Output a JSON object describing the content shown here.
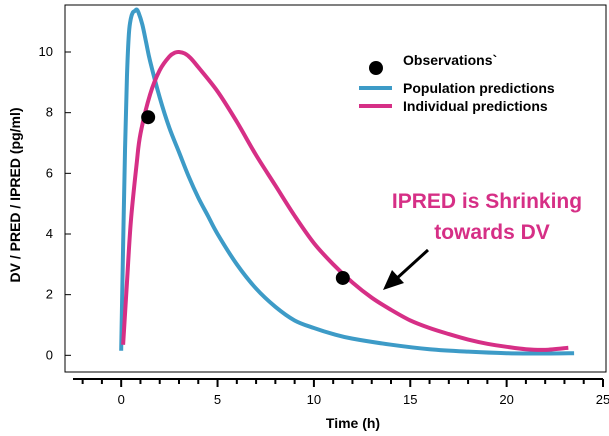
{
  "chart_data": {
    "type": "line",
    "xlabel": "Time (h)",
    "ylabel": "DV / PRED / IPRED (pg/ml)",
    "xlim": [
      -2.5,
      25
    ],
    "ylim": [
      -0.55,
      11.55
    ],
    "xticks": [
      0,
      5,
      10,
      15,
      20,
      25
    ],
    "yticks": [
      0,
      2,
      4,
      6,
      8,
      10
    ],
    "grid": false,
    "legend_position": "top-right",
    "series": [
      {
        "name": "Population predictions",
        "color": "#3d9bc7",
        "x": [
          0.0,
          0.1,
          0.2,
          0.3,
          0.4,
          0.5,
          0.6,
          0.7,
          0.8,
          0.9,
          1.1,
          1.3,
          1.5,
          2,
          2.5,
          3,
          3.5,
          4,
          4.5,
          5,
          6,
          7,
          8,
          9,
          10,
          11,
          12,
          14,
          16,
          18,
          20,
          22,
          23.5
        ],
        "y": [
          0.15,
          3.6,
          6.8,
          9.2,
          10.6,
          11.1,
          11.3,
          11.35,
          11.4,
          11.3,
          10.9,
          10.3,
          9.7,
          8.5,
          7.5,
          6.7,
          5.9,
          5.2,
          4.6,
          4.0,
          3.0,
          2.2,
          1.6,
          1.15,
          0.9,
          0.7,
          0.55,
          0.35,
          0.2,
          0.12,
          0.07,
          0.06,
          0.07
        ]
      },
      {
        "name": "Individual predictions",
        "color": "#d62f86",
        "x": [
          0.1,
          0.3,
          0.5,
          0.8,
          1.0,
          1.5,
          2.0,
          2.5,
          2.8,
          3.0,
          3.3,
          3.6,
          4,
          5,
          6,
          7,
          8,
          9,
          10,
          11,
          12,
          13,
          14,
          15,
          16,
          17,
          18,
          19,
          20,
          21,
          22,
          23.2
        ],
        "y": [
          0.35,
          2.4,
          4.4,
          6.3,
          7.3,
          8.6,
          9.4,
          9.85,
          9.98,
          10.0,
          9.95,
          9.8,
          9.5,
          8.7,
          7.7,
          6.6,
          5.6,
          4.6,
          3.7,
          3.0,
          2.4,
          1.9,
          1.5,
          1.15,
          0.9,
          0.7,
          0.52,
          0.38,
          0.28,
          0.2,
          0.18,
          0.25
        ]
      },
      {
        "name": "Observations`",
        "type": "scatter",
        "color": "#000000",
        "x": [
          1.4,
          11.5
        ],
        "y": [
          7.85,
          2.55
        ]
      }
    ],
    "annotation": {
      "lines": [
        "IPRED is Shrinking",
        "towards DV"
      ],
      "color": "#d62f86",
      "arrow_to": [
        13.2,
        1.9
      ]
    }
  }
}
